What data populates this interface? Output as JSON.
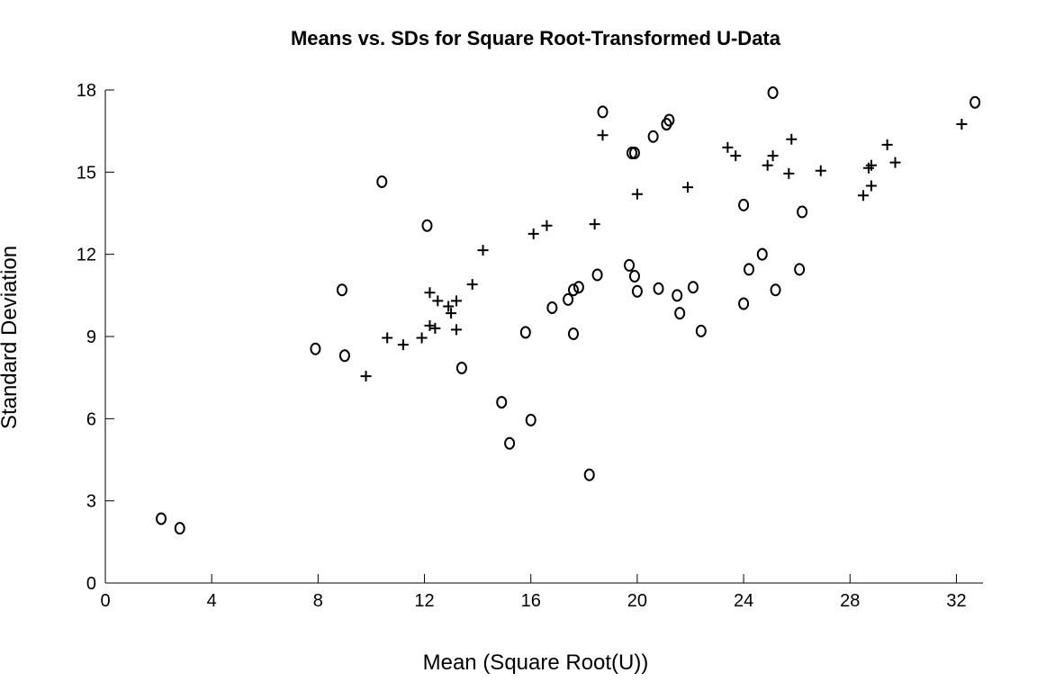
{
  "chart_data": {
    "type": "scatter",
    "title": "Means vs. SDs for Square Root-Transformed U-Data",
    "xlabel": "Mean (Square Root(U))",
    "ylabel": "Standard Deviation",
    "xlim": [
      0,
      33
    ],
    "ylim": [
      0,
      18
    ],
    "xticks": [
      0,
      4,
      8,
      12,
      16,
      20,
      24,
      28,
      32
    ],
    "yticks": [
      0,
      3,
      6,
      9,
      12,
      15,
      18
    ],
    "grid": false,
    "series": [
      {
        "marker": "o",
        "points": [
          [
            2.1,
            2.35
          ],
          [
            2.8,
            2.0
          ],
          [
            7.9,
            8.55
          ],
          [
            8.9,
            10.7
          ],
          [
            9.0,
            8.3
          ],
          [
            10.4,
            14.65
          ],
          [
            12.1,
            13.05
          ],
          [
            13.4,
            7.85
          ],
          [
            14.9,
            6.6
          ],
          [
            15.2,
            5.1
          ],
          [
            15.8,
            9.15
          ],
          [
            16.0,
            5.95
          ],
          [
            16.8,
            10.05
          ],
          [
            17.4,
            10.35
          ],
          [
            17.6,
            10.7
          ],
          [
            17.6,
            9.1
          ],
          [
            17.8,
            10.8
          ],
          [
            18.2,
            3.95
          ],
          [
            18.5,
            11.25
          ],
          [
            18.7,
            17.2
          ],
          [
            19.7,
            11.6
          ],
          [
            19.8,
            15.7
          ],
          [
            19.9,
            15.7
          ],
          [
            19.9,
            11.2
          ],
          [
            20.0,
            10.65
          ],
          [
            20.6,
            16.3
          ],
          [
            20.8,
            10.75
          ],
          [
            21.1,
            16.75
          ],
          [
            21.2,
            16.9
          ],
          [
            21.5,
            10.5
          ],
          [
            21.6,
            9.85
          ],
          [
            22.1,
            10.8
          ],
          [
            22.4,
            9.2
          ],
          [
            24.0,
            13.8
          ],
          [
            24.0,
            10.2
          ],
          [
            24.2,
            11.45
          ],
          [
            24.7,
            12.0
          ],
          [
            25.1,
            17.9
          ],
          [
            25.2,
            10.7
          ],
          [
            26.1,
            11.45
          ],
          [
            26.2,
            13.55
          ],
          [
            32.7,
            17.55
          ]
        ]
      },
      {
        "marker": "+",
        "points": [
          [
            9.8,
            7.55
          ],
          [
            10.6,
            8.95
          ],
          [
            11.2,
            8.7
          ],
          [
            11.9,
            8.95
          ],
          [
            12.2,
            10.6
          ],
          [
            12.2,
            9.4
          ],
          [
            12.4,
            9.3
          ],
          [
            12.5,
            10.3
          ],
          [
            12.9,
            10.1
          ],
          [
            13.0,
            9.85
          ],
          [
            13.2,
            10.3
          ],
          [
            13.2,
            9.25
          ],
          [
            13.8,
            10.9
          ],
          [
            14.2,
            12.15
          ],
          [
            16.1,
            12.75
          ],
          [
            16.6,
            13.05
          ],
          [
            18.4,
            13.1
          ],
          [
            18.7,
            16.35
          ],
          [
            20.0,
            14.2
          ],
          [
            21.9,
            14.45
          ],
          [
            23.4,
            15.9
          ],
          [
            23.7,
            15.6
          ],
          [
            24.9,
            15.25
          ],
          [
            25.1,
            15.6
          ],
          [
            25.7,
            14.95
          ],
          [
            25.8,
            16.2
          ],
          [
            26.9,
            15.05
          ],
          [
            28.5,
            14.15
          ],
          [
            28.7,
            15.15
          ],
          [
            28.8,
            15.25
          ],
          [
            28.8,
            14.5
          ],
          [
            29.4,
            16.0
          ],
          [
            29.7,
            15.35
          ],
          [
            32.2,
            16.75
          ]
        ]
      }
    ]
  }
}
